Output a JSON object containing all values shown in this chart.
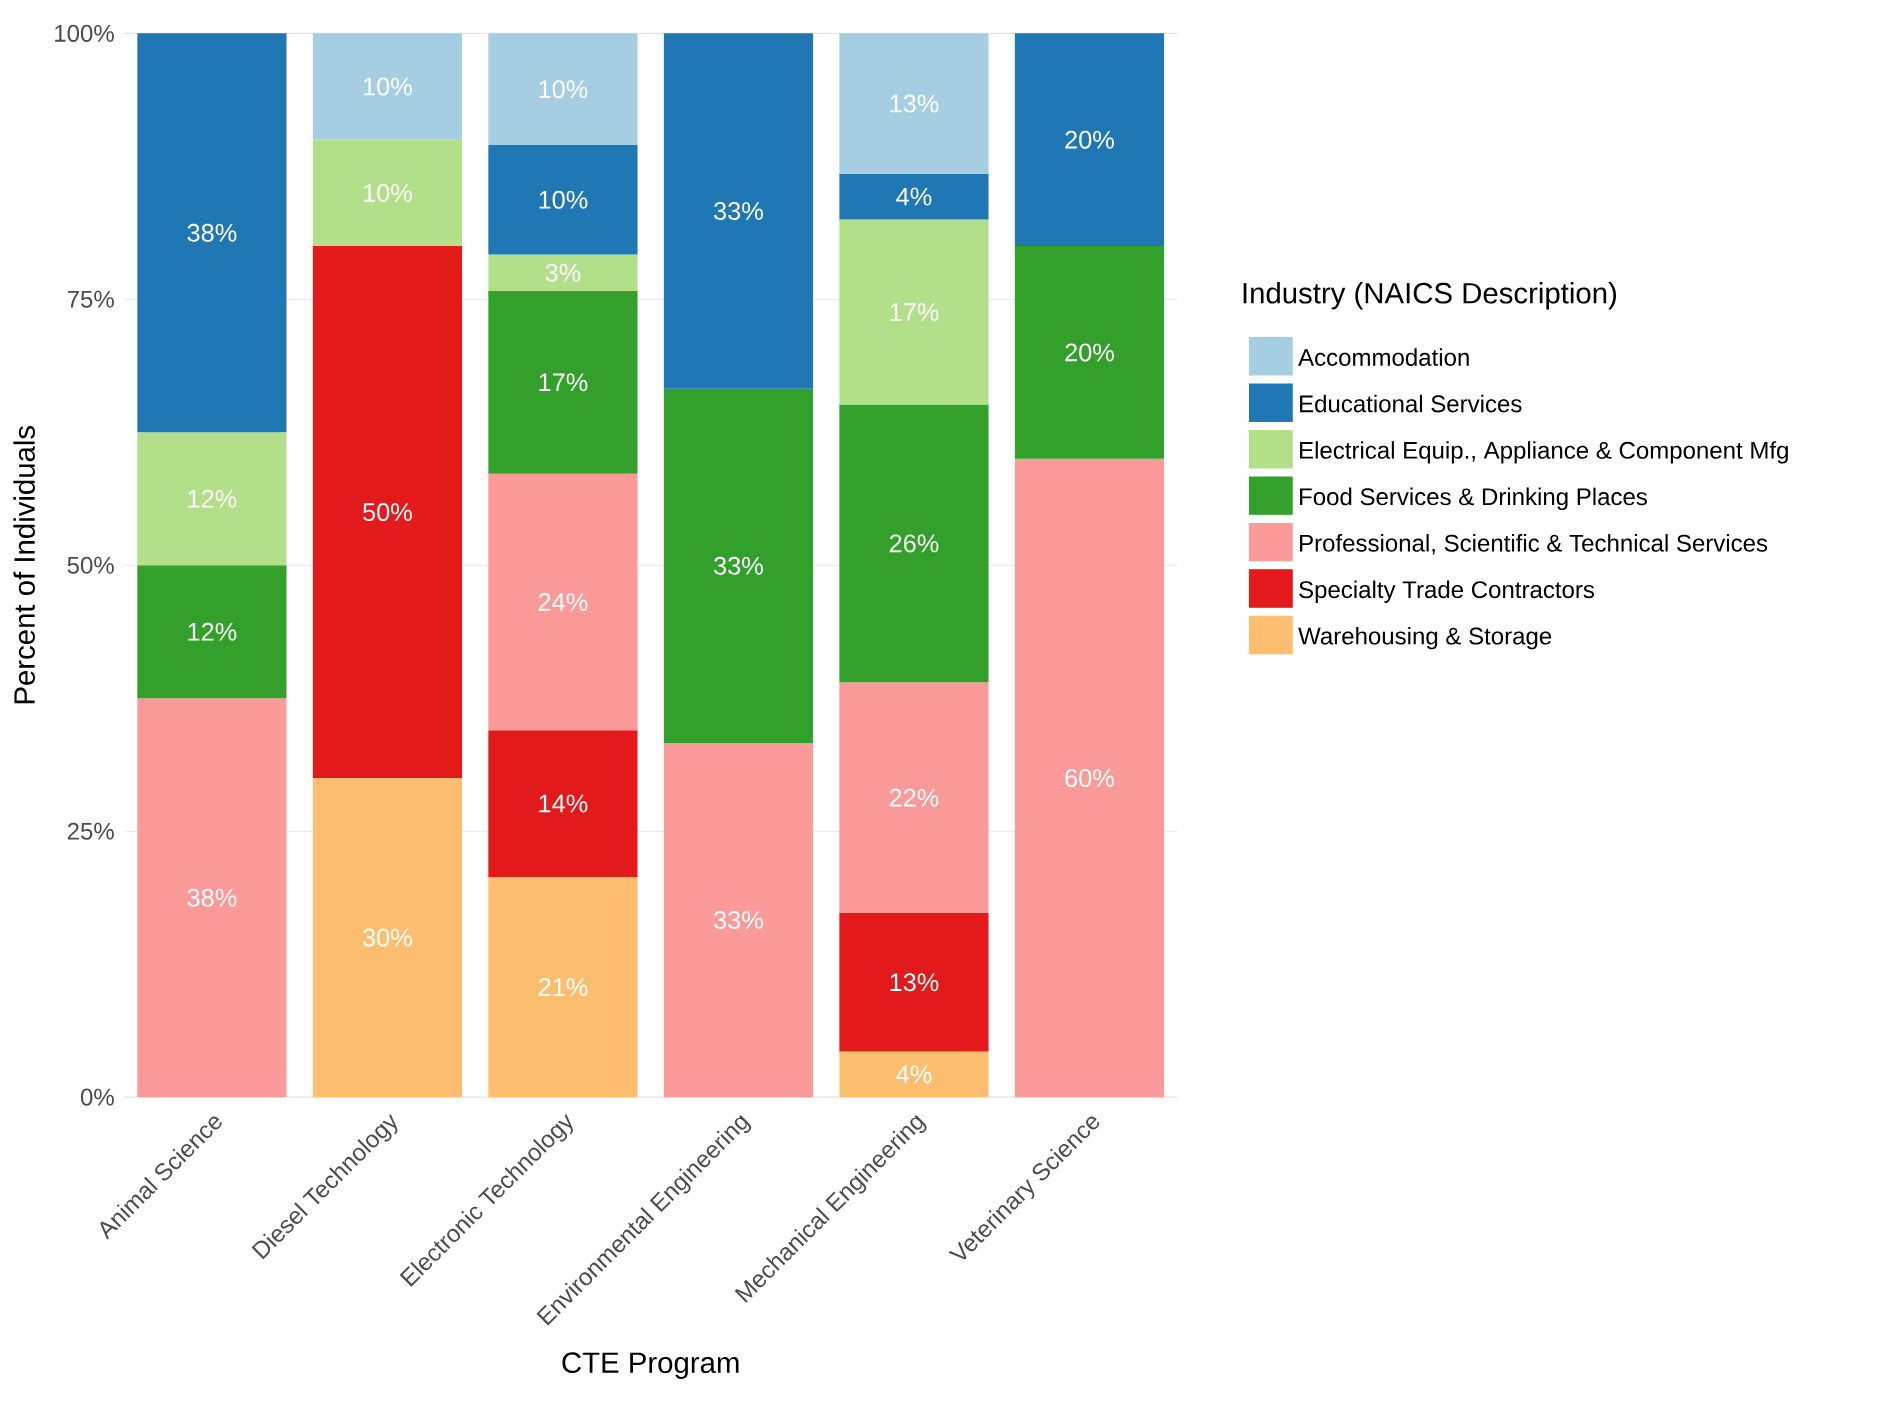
{
  "chart_data": {
    "type": "bar",
    "stacked": true,
    "xlabel": "CTE Program",
    "ylabel": "Percent of Individuals",
    "legend_title": "Industry (NAICS Description)",
    "categories": [
      "Animal Science",
      "Diesel Technology",
      "Electronic Technology",
      "Environmental Engineering",
      "Mechanical Engineering",
      "Veterinary Science"
    ],
    "ylim": [
      0,
      100
    ],
    "yticks": [
      {
        "value": 0,
        "label": "0%"
      },
      {
        "value": 25,
        "label": "25%"
      },
      {
        "value": 50,
        "label": "50%"
      },
      {
        "value": 75,
        "label": "75%"
      },
      {
        "value": 100,
        "label": "100%"
      }
    ],
    "grid": "y",
    "legend": "right",
    "series": [
      {
        "name": "Warehousing & Storage",
        "color": "#fdbf6f",
        "values": [
          null,
          30,
          20.7,
          null,
          4.3,
          null
        ],
        "value_labels": [
          null,
          "30%",
          "21%",
          null,
          "4%",
          null
        ]
      },
      {
        "name": "Specialty Trade Contractors",
        "color": "#e31a1c",
        "values": [
          null,
          50,
          13.8,
          null,
          13.0,
          null
        ],
        "value_labels": [
          null,
          "50%",
          "14%",
          null,
          "13%",
          null
        ]
      },
      {
        "name": "Professional, Scientific & Technical Services",
        "color": "#fb9a99",
        "values": [
          37.5,
          null,
          24.1,
          33.3,
          21.7,
          60
        ],
        "value_labels": [
          "38%",
          null,
          "24%",
          "33%",
          "22%",
          "60%"
        ]
      },
      {
        "name": "Food Services & Drinking Places",
        "color": "#33a02c",
        "values": [
          12.5,
          null,
          17.2,
          33.3,
          26.1,
          20
        ],
        "value_labels": [
          "12%",
          null,
          "17%",
          "33%",
          "26%",
          "20%"
        ]
      },
      {
        "name": "Electrical Equip., Appliance & Component Mfg",
        "color": "#b2df8a",
        "values": [
          12.5,
          10,
          3.4,
          null,
          17.4,
          null
        ],
        "value_labels": [
          "12%",
          "10%",
          "3%",
          null,
          "17%",
          null
        ]
      },
      {
        "name": "Educational Services",
        "color": "#1f78b4",
        "values": [
          37.5,
          null,
          10.3,
          33.4,
          4.3,
          20
        ],
        "value_labels": [
          "38%",
          null,
          "10%",
          "33%",
          "4%",
          "20%"
        ]
      },
      {
        "name": "Accommodation",
        "color": "#a6cee3",
        "values": [
          null,
          10,
          10.5,
          null,
          13.2,
          null
        ],
        "value_labels": [
          null,
          "10%",
          "10%",
          null,
          "13%",
          null
        ]
      }
    ]
  }
}
